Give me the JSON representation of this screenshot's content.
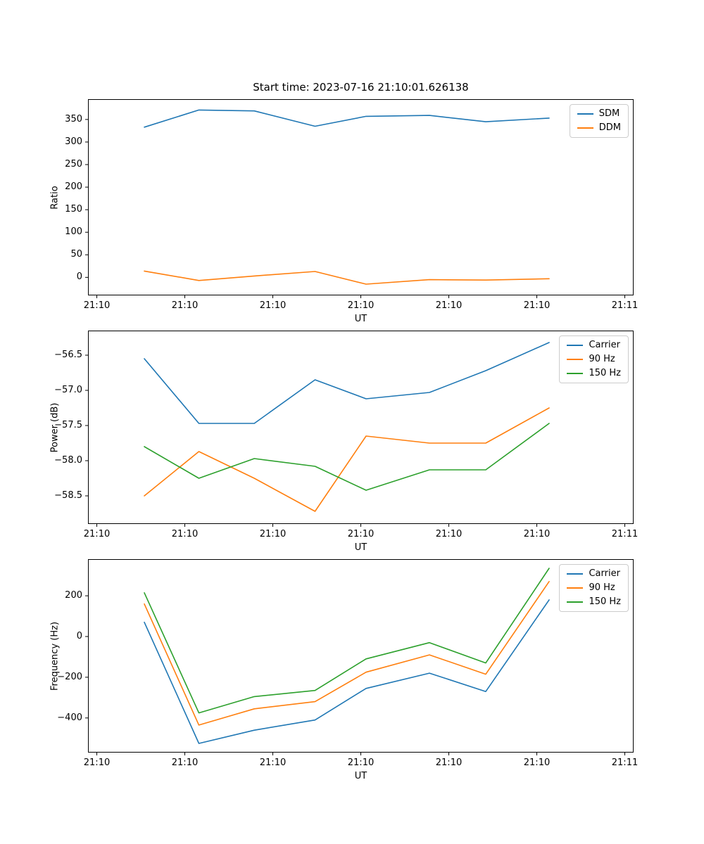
{
  "figure": {
    "title": "Start time: 2023-07-16 21:10:01.626138",
    "background_color": "#ffffff",
    "accent_colors": {
      "blue": "#1f77b4",
      "orange": "#ff7f0e",
      "green": "#2ca02c"
    }
  },
  "chart_data": [
    {
      "type": "line",
      "title": "Start time: 2023-07-16 21:10:01.626138",
      "xlabel": "UT",
      "ylabel": "Ratio",
      "grid": false,
      "legend_position": "upper right",
      "x_seconds_after_21_10_00": [
        5.4,
        11.6,
        17.9,
        24.8,
        30.6,
        37.8,
        44.2,
        51.4
      ],
      "series": [
        {
          "name": "SDM",
          "color": "#1f77b4",
          "values": [
            333,
            371,
            369,
            335,
            357,
            359,
            345,
            353
          ]
        },
        {
          "name": "DDM",
          "color": "#ff7f0e",
          "values": [
            14,
            -7,
            3,
            13,
            -15,
            -5,
            -6,
            -3
          ]
        }
      ],
      "xlim": [
        -1,
        61
      ],
      "ylim": [
        -40,
        395
      ],
      "xticks": [
        0,
        10,
        20,
        30,
        40,
        50,
        60
      ],
      "xticklabels": [
        "21:10",
        "21:10",
        "21:10",
        "21:10",
        "21:10",
        "21:10",
        "21:11"
      ],
      "yticks": [
        0,
        50,
        100,
        150,
        200,
        250,
        300,
        350
      ],
      "yticklabels": [
        "0",
        "50",
        "100",
        "150",
        "200",
        "250",
        "300",
        "350"
      ]
    },
    {
      "type": "line",
      "title": "",
      "xlabel": "UT",
      "ylabel": "Power (dB)",
      "grid": false,
      "legend_position": "upper right",
      "x_seconds_after_21_10_00": [
        5.4,
        11.6,
        17.9,
        24.8,
        30.6,
        37.8,
        44.2,
        51.4
      ],
      "series": [
        {
          "name": "Carrier",
          "color": "#1f77b4",
          "values": [
            -56.55,
            -57.47,
            -57.47,
            -56.85,
            -57.12,
            -57.03,
            -56.72,
            -56.32
          ]
        },
        {
          "name": "90 Hz",
          "color": "#ff7f0e",
          "values": [
            -58.5,
            -57.87,
            -58.25,
            -58.72,
            -57.65,
            -57.75,
            -57.75,
            -57.25
          ]
        },
        {
          "name": "150 Hz",
          "color": "#2ca02c",
          "values": [
            -57.8,
            -58.25,
            -57.97,
            -58.08,
            -58.42,
            -58.13,
            -58.13,
            -57.47
          ]
        }
      ],
      "xlim": [
        -1,
        61
      ],
      "ylim": [
        -58.9,
        -56.15
      ],
      "xticks": [
        0,
        10,
        20,
        30,
        40,
        50,
        60
      ],
      "xticklabels": [
        "21:10",
        "21:10",
        "21:10",
        "21:10",
        "21:10",
        "21:10",
        "21:11"
      ],
      "yticks": [
        -58.5,
        -58.0,
        -57.5,
        -57.0,
        -56.5
      ],
      "yticklabels": [
        "−58.5",
        "−58.0",
        "−57.5",
        "−57.0",
        "−56.5"
      ]
    },
    {
      "type": "line",
      "title": "",
      "xlabel": "UT",
      "ylabel": "Frequency (Hz)",
      "grid": false,
      "legend_position": "upper right",
      "x_seconds_after_21_10_00": [
        5.4,
        11.6,
        17.9,
        24.8,
        30.6,
        37.8,
        44.2,
        51.4
      ],
      "series": [
        {
          "name": "Carrier",
          "color": "#1f77b4",
          "values": [
            70,
            -525,
            -460,
            -410,
            -255,
            -180,
            -270,
            180
          ]
        },
        {
          "name": "90 Hz",
          "color": "#ff7f0e",
          "values": [
            160,
            -435,
            -355,
            -320,
            -175,
            -90,
            -185,
            270
          ]
        },
        {
          "name": "150 Hz",
          "color": "#2ca02c",
          "values": [
            215,
            -375,
            -295,
            -265,
            -110,
            -30,
            -130,
            335
          ]
        }
      ],
      "xlim": [
        -1,
        61
      ],
      "ylim": [
        -570,
        380
      ],
      "xticks": [
        0,
        10,
        20,
        30,
        40,
        50,
        60
      ],
      "xticklabels": [
        "21:10",
        "21:10",
        "21:10",
        "21:10",
        "21:10",
        "21:10",
        "21:11"
      ],
      "yticks": [
        -400,
        -200,
        0,
        200
      ],
      "yticklabels": [
        "−400",
        "−200",
        "0",
        "200"
      ]
    }
  ]
}
